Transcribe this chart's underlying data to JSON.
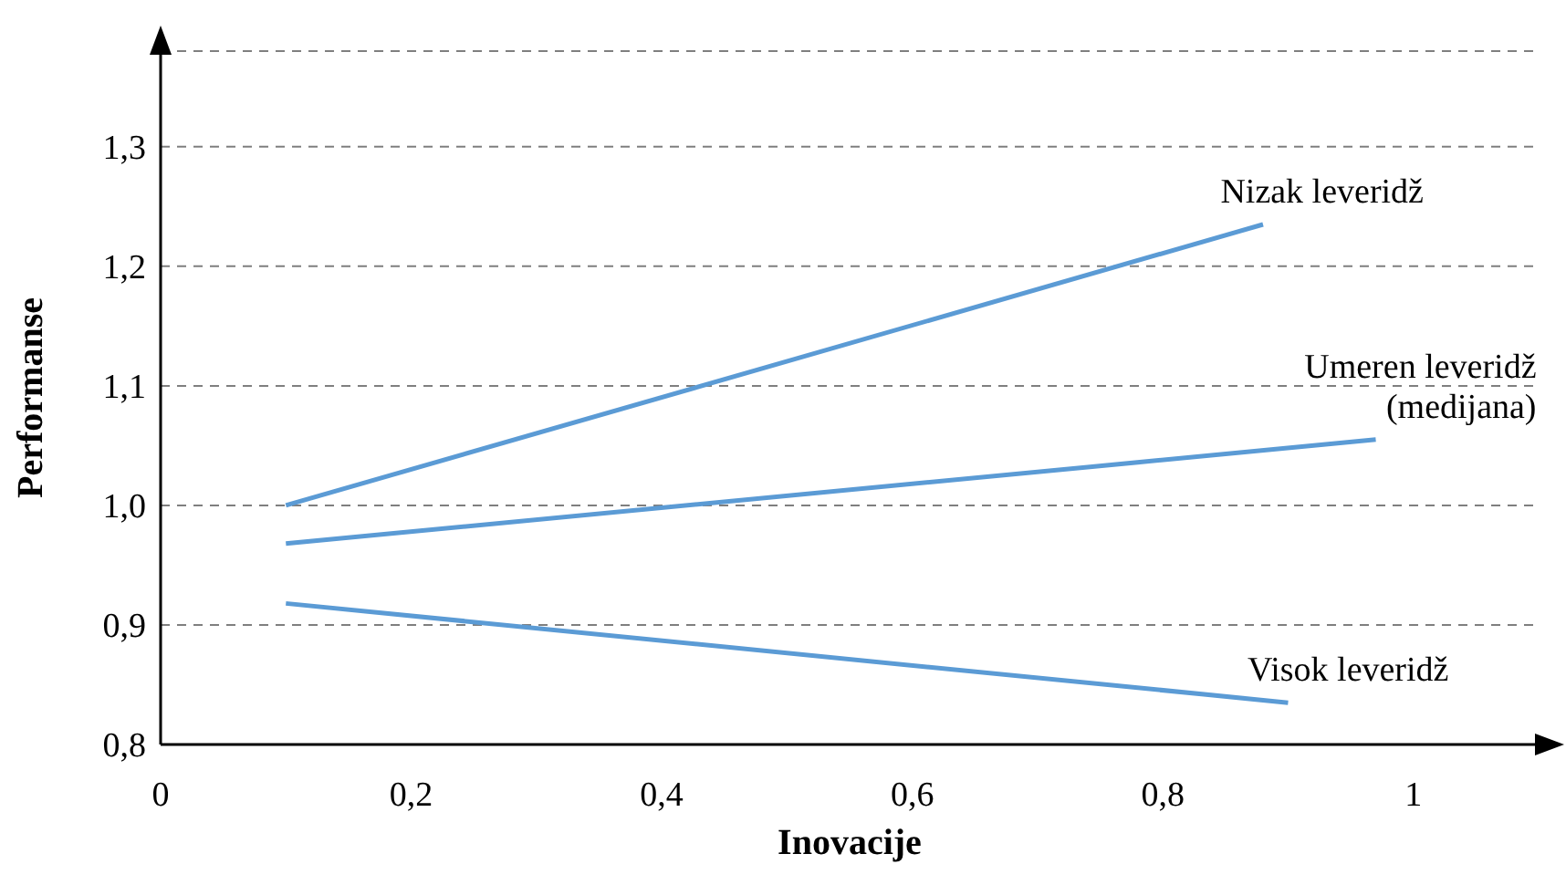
{
  "chart_data": {
    "type": "line",
    "xlabel": "Inovacije",
    "ylabel": "Performanse",
    "xlim": [
      0,
      1.1
    ],
    "xticks": [
      {
        "value": 0,
        "label": "0"
      },
      {
        "value": 0.2,
        "label": "0,2"
      },
      {
        "value": 0.4,
        "label": "0,4"
      },
      {
        "value": 0.6,
        "label": "0,6"
      },
      {
        "value": 0.8,
        "label": "0,8"
      },
      {
        "value": 1,
        "label": "1"
      }
    ],
    "ylim": [
      0.8,
      1.38
    ],
    "yticks": [
      {
        "value": 0.8,
        "label": "0,8"
      },
      {
        "value": 0.9,
        "label": "0,9"
      },
      {
        "value": 1.0,
        "label": "1,0"
      },
      {
        "value": 1.1,
        "label": "1,1"
      },
      {
        "value": 1.2,
        "label": "1,2"
      },
      {
        "value": 1.3,
        "label": "1,3"
      }
    ],
    "grid": "y",
    "marker": "none",
    "line_style": "solid",
    "legend": false,
    "series": [
      {
        "name": "Nizak leveridž",
        "color": "#5b9bd5",
        "x": [
          0.1,
          0.88
        ],
        "values": [
          1.0,
          1.235
        ]
      },
      {
        "name": "Umeren leveridž (medijana)",
        "color": "#5b9bd5",
        "x": [
          0.1,
          0.97
        ],
        "values": [
          0.968,
          1.055
        ]
      },
      {
        "name": "Visok leveridž",
        "color": "#5b9bd5",
        "x": [
          0.1,
          0.9
        ],
        "values": [
          0.918,
          0.835
        ]
      }
    ]
  }
}
